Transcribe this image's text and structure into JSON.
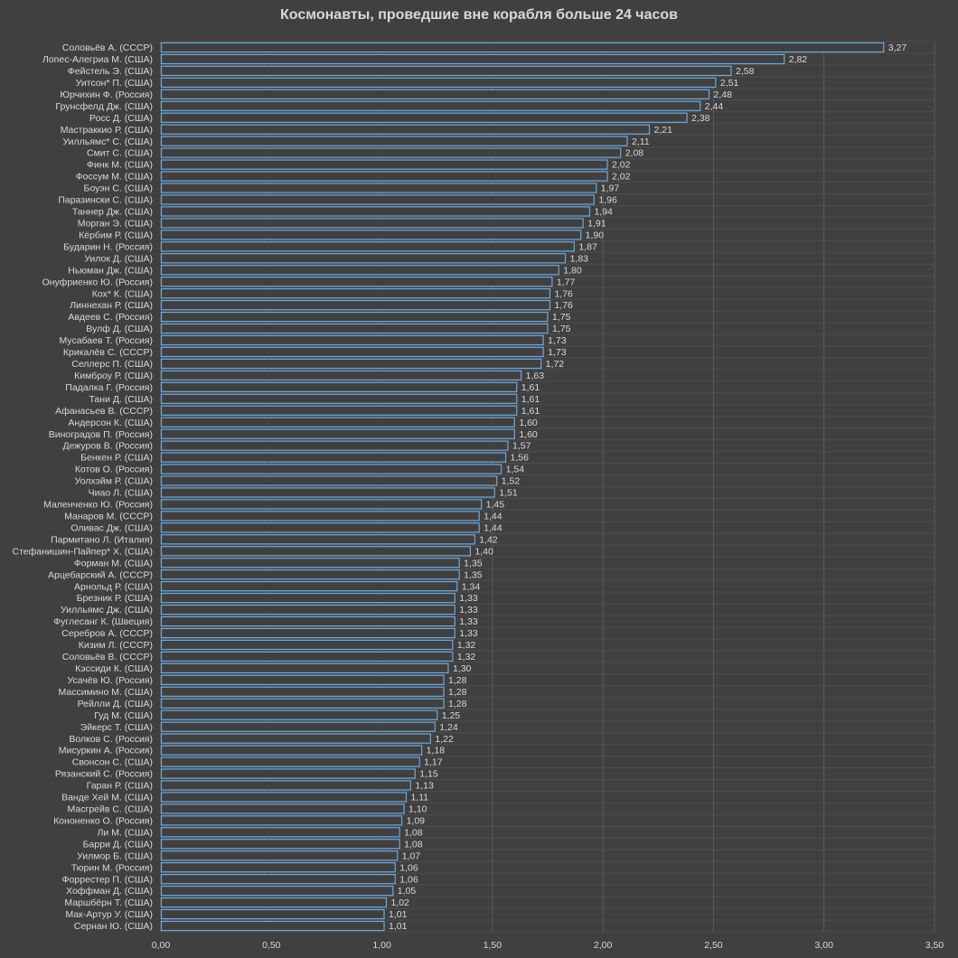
{
  "chart_data": {
    "type": "bar",
    "orientation": "horizontal",
    "title": "Космонавты, проведшие вне корабля больше 24 часов",
    "xlabel": "",
    "ylabel": "",
    "xlim": [
      0,
      3.5
    ],
    "xticks": [
      "0,00",
      "0,50",
      "1,00",
      "1,50",
      "2,00",
      "2,50",
      "3,00",
      "3,50"
    ],
    "xtick_values": [
      0,
      0.5,
      1,
      1.5,
      2,
      2.5,
      3,
      3.5
    ],
    "grid": true,
    "legend": "none",
    "colors": {
      "background": "#404040",
      "bar_outline": "#6fa8dc",
      "text": "#d9d9d9",
      "grid": "#595959"
    },
    "categories": [
      "Соловьёв А. (СССР)",
      "Лопес-Алегриа М. (США)",
      "Фейстель Э. (США)",
      "Уитсон* П. (США)",
      "Юрчихин Ф. (Россия)",
      "Грунсфелд Дж. (США)",
      "Росс Д. (США)",
      "Мастраккио Р. (США)",
      "Уилльямс* С. (США)",
      "Смит С. (США)",
      "Финк М. (США)",
      "Фоссум М. (США)",
      "Боуэн С. (США)",
      "Паразински С. (США)",
      "Таннер Дж. (США)",
      "Морган Э. (США)",
      "Кёрбим Р. (США)",
      "Бударин Н. (Россия)",
      "Уилок Д. (США)",
      "Ньюман Дж. (США)",
      "Онуфриенко Ю. (Россия)",
      "Кох* К. (США)",
      "Линнехан Р. (США)",
      "Авдеев С. (Россия)",
      "Вулф Д. (США)",
      "Мусабаев Т. (Россия)",
      "Крикалёв С. (СССР)",
      "Селлерс П. (США)",
      "Кимброу Р. (США)",
      "Падалка Г. (Россия)",
      "Тани Д. (США)",
      "Афанасьев В. (СССР)",
      "Андерсон К. (США)",
      "Виноградов П. (Россия)",
      "Дежуров В. (Россия)",
      "Бенкен Р. (США)",
      "Котов О. (Россия)",
      "Уолхэйм Р. (США)",
      "Чиао Л. (США)",
      "Маленченко Ю. (Россия)",
      "Манаров М. (СССР)",
      "Оливас Дж. (США)",
      "Пармитано Л. (Италия)",
      "Стефанишин-Пайпер* Х. (США)",
      "Форман М. (США)",
      "Арцебарский А. (СССР)",
      "Арнольд Р. (США)",
      "Брезник Р. (США)",
      "Уилльямс Дж. (США)",
      "Фуглесанг К. (Швеция)",
      "Серебров А. (СССР)",
      "Кизим Л. (СССР)",
      "Соловьёв В. (СССР)",
      "Кэссиди К. (США)",
      "Усачёв Ю. (Россия)",
      "Массимино М. (США)",
      "Рейлли Д. (США)",
      "Гуд М. (США)",
      "Эйкерс Т. (США)",
      "Волков С. (Россия)",
      "Мисуркин А. (Россия)",
      "Свонсон С. (США)",
      "Рязанский С. (Россия)",
      "Гаран Р. (США)",
      "Ванде Хей М. (США)",
      "Масгрейв С. (США)",
      "Кононенко О. (Россия)",
      "Ли М. (США)",
      "Барри Д. (США)",
      "Уилмор Б. (США)",
      "Тюрин М. (Россия)",
      "Форрестер П. (США)",
      "Хоффман Д. (США)",
      "Маршбёрн Т. (США)",
      "Мак-Артур У. (США)",
      "Сернан Ю. (США)"
    ],
    "values": [
      3.27,
      2.82,
      2.58,
      2.51,
      2.48,
      2.44,
      2.38,
      2.21,
      2.11,
      2.08,
      2.02,
      2.02,
      1.97,
      1.96,
      1.94,
      1.91,
      1.9,
      1.87,
      1.83,
      1.8,
      1.77,
      1.76,
      1.76,
      1.75,
      1.75,
      1.73,
      1.73,
      1.72,
      1.63,
      1.61,
      1.61,
      1.61,
      1.6,
      1.6,
      1.57,
      1.56,
      1.54,
      1.52,
      1.51,
      1.45,
      1.44,
      1.44,
      1.42,
      1.4,
      1.35,
      1.35,
      1.34,
      1.33,
      1.33,
      1.33,
      1.33,
      1.32,
      1.32,
      1.3,
      1.28,
      1.28,
      1.28,
      1.25,
      1.24,
      1.22,
      1.18,
      1.17,
      1.15,
      1.13,
      1.11,
      1.1,
      1.09,
      1.08,
      1.08,
      1.07,
      1.06,
      1.06,
      1.05,
      1.02,
      1.01,
      1.01
    ],
    "value_labels": [
      "3,27",
      "2,82",
      "2,58",
      "2,51",
      "2,48",
      "2,44",
      "2,38",
      "2,21",
      "2,11",
      "2,08",
      "2,02",
      "2,02",
      "1,97",
      "1,96",
      "1,94",
      "1,91",
      "1,90",
      "1,87",
      "1,83",
      "1,80",
      "1,77",
      "1,76",
      "1,76",
      "1,75",
      "1,75",
      "1,73",
      "1,73",
      "1,72",
      "1,63",
      "1,61",
      "1,61",
      "1,61",
      "1,60",
      "1,60",
      "1,57",
      "1,56",
      "1,54",
      "1,52",
      "1,51",
      "1,45",
      "1,44",
      "1,44",
      "1,42",
      "1,40",
      "1,35",
      "1,35",
      "1,34",
      "1,33",
      "1,33",
      "1,33",
      "1,33",
      "1,32",
      "1,32",
      "1,30",
      "1,28",
      "1,28",
      "1,28",
      "1,25",
      "1,24",
      "1,22",
      "1,18",
      "1,17",
      "1,15",
      "1,13",
      "1,11",
      "1,10",
      "1,09",
      "1,08",
      "1,08",
      "1,07",
      "1,06",
      "1,06",
      "1,05",
      "1,02",
      "1,01",
      "1,01"
    ]
  }
}
